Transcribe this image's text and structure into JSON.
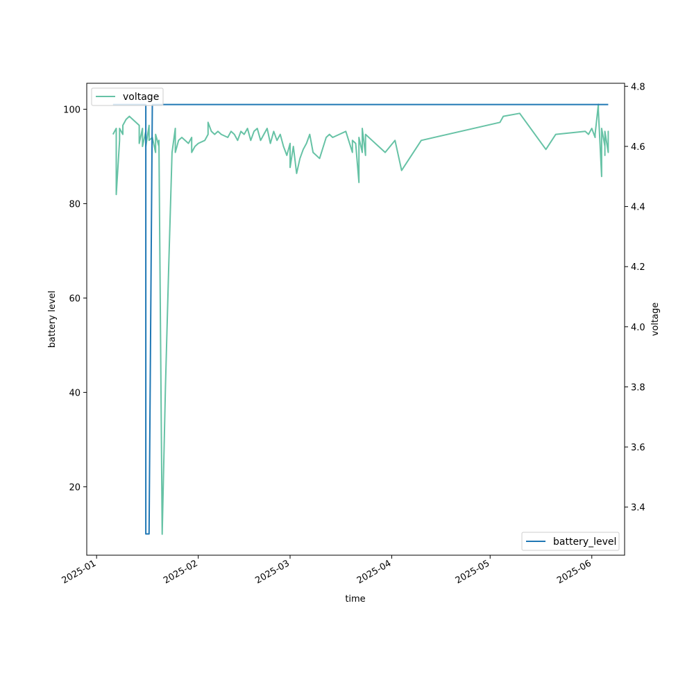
{
  "chart_data": {
    "type": "line",
    "xlabel": "time",
    "ylabel": "battery level",
    "ylabel_right": "voltage",
    "x_ticks": [
      "2025-01",
      "2025-02",
      "2025-03",
      "2025-04",
      "2025-05",
      "2025-06"
    ],
    "xlim": [
      "2024-12-29",
      "2025-06-11"
    ],
    "ylim": [
      5.5,
      105.5
    ],
    "ylim_right": [
      3.24,
      4.81
    ],
    "y_ticks": [
      20,
      40,
      60,
      80,
      100
    ],
    "y_ticks_right": [
      3.4,
      3.6,
      3.8,
      4.0,
      4.2,
      4.4,
      4.6,
      4.8
    ],
    "grid": false,
    "series": [
      {
        "name": "battery_level",
        "axis": "left",
        "color": "#1f77b4",
        "legend_position": "lower-right",
        "points": [
          [
            "2025-01-06",
            101
          ],
          [
            "2025-01-16",
            101
          ],
          [
            "2025-01-16",
            10
          ],
          [
            "2025-01-17",
            10
          ],
          [
            "2025-01-18",
            101
          ],
          [
            "2025-06-06",
            101
          ]
        ]
      },
      {
        "name": "voltage",
        "axis": "right",
        "color": "#66c2a5",
        "legend_position": "upper-left",
        "points": [
          [
            "2025-01-06",
            4.64
          ],
          [
            "2025-01-07",
            4.66
          ],
          [
            "2025-01-07",
            4.44
          ],
          [
            "2025-01-08",
            4.62
          ],
          [
            "2025-01-08",
            4.66
          ],
          [
            "2025-01-09",
            4.64
          ],
          [
            "2025-01-09",
            4.67
          ],
          [
            "2025-01-10",
            4.69
          ],
          [
            "2025-01-11",
            4.7
          ],
          [
            "2025-01-12",
            4.69
          ],
          [
            "2025-01-14",
            4.67
          ],
          [
            "2025-01-14",
            4.61
          ],
          [
            "2025-01-15",
            4.66
          ],
          [
            "2025-01-15",
            4.6
          ],
          [
            "2025-01-16",
            4.65
          ],
          [
            "2025-01-16",
            4.6
          ],
          [
            "2025-01-17",
            4.67
          ],
          [
            "2025-01-17",
            4.62
          ],
          [
            "2025-01-18",
            4.63
          ],
          [
            "2025-01-19",
            4.58
          ],
          [
            "2025-01-19",
            4.64
          ],
          [
            "2025-01-20",
            4.6
          ],
          [
            "2025-01-20",
            4.62
          ],
          [
            "2025-01-21",
            3.31
          ],
          [
            "2025-01-22",
            3.8
          ],
          [
            "2025-01-23",
            4.2
          ],
          [
            "2025-01-24",
            4.58
          ],
          [
            "2025-01-25",
            4.66
          ],
          [
            "2025-01-25",
            4.58
          ],
          [
            "2025-01-26",
            4.62
          ],
          [
            "2025-01-27",
            4.63
          ],
          [
            "2025-01-29",
            4.61
          ],
          [
            "2025-01-30",
            4.63
          ],
          [
            "2025-01-30",
            4.58
          ],
          [
            "2025-01-31",
            4.6
          ],
          [
            "2025-02-01",
            4.61
          ],
          [
            "2025-02-03",
            4.62
          ],
          [
            "2025-02-04",
            4.64
          ],
          [
            "2025-02-04",
            4.68
          ],
          [
            "2025-02-05",
            4.65
          ],
          [
            "2025-02-06",
            4.64
          ],
          [
            "2025-02-07",
            4.65
          ],
          [
            "2025-02-08",
            4.64
          ],
          [
            "2025-02-10",
            4.63
          ],
          [
            "2025-02-11",
            4.65
          ],
          [
            "2025-02-12",
            4.64
          ],
          [
            "2025-02-13",
            4.62
          ],
          [
            "2025-02-14",
            4.65
          ],
          [
            "2025-02-15",
            4.64
          ],
          [
            "2025-02-16",
            4.66
          ],
          [
            "2025-02-17",
            4.62
          ],
          [
            "2025-02-18",
            4.65
          ],
          [
            "2025-02-19",
            4.66
          ],
          [
            "2025-02-20",
            4.62
          ],
          [
            "2025-02-21",
            4.64
          ],
          [
            "2025-02-22",
            4.66
          ],
          [
            "2025-02-23",
            4.61
          ],
          [
            "2025-02-24",
            4.65
          ],
          [
            "2025-02-25",
            4.62
          ],
          [
            "2025-02-26",
            4.64
          ],
          [
            "2025-02-27",
            4.6
          ],
          [
            "2025-02-28",
            4.57
          ],
          [
            "2025-03-01",
            4.61
          ],
          [
            "2025-03-01",
            4.53
          ],
          [
            "2025-03-02",
            4.6
          ],
          [
            "2025-03-03",
            4.51
          ],
          [
            "2025-03-04",
            4.56
          ],
          [
            "2025-03-05",
            4.59
          ],
          [
            "2025-03-06",
            4.61
          ],
          [
            "2025-03-07",
            4.64
          ],
          [
            "2025-03-08",
            4.58
          ],
          [
            "2025-03-10",
            4.56
          ],
          [
            "2025-03-12",
            4.63
          ],
          [
            "2025-03-13",
            4.64
          ],
          [
            "2025-03-14",
            4.63
          ],
          [
            "2025-03-16",
            4.64
          ],
          [
            "2025-03-18",
            4.65
          ],
          [
            "2025-03-20",
            4.58
          ],
          [
            "2025-03-20",
            4.62
          ],
          [
            "2025-03-21",
            4.61
          ],
          [
            "2025-03-22",
            4.48
          ],
          [
            "2025-03-22",
            4.63
          ],
          [
            "2025-03-23",
            4.58
          ],
          [
            "2025-03-23",
            4.66
          ],
          [
            "2025-03-24",
            4.57
          ],
          [
            "2025-03-24",
            4.64
          ],
          [
            "2025-03-26",
            4.62
          ],
          [
            "2025-03-28",
            4.6
          ],
          [
            "2025-03-30",
            4.58
          ],
          [
            "2025-04-02",
            4.62
          ],
          [
            "2025-04-04",
            4.52
          ],
          [
            "2025-04-10",
            4.62
          ],
          [
            "2025-05-04",
            4.68
          ],
          [
            "2025-05-05",
            4.7
          ],
          [
            "2025-05-10",
            4.71
          ],
          [
            "2025-05-18",
            4.59
          ],
          [
            "2025-05-21",
            4.64
          ],
          [
            "2025-05-30",
            4.65
          ],
          [
            "2025-05-31",
            4.64
          ],
          [
            "2025-06-01",
            4.66
          ],
          [
            "2025-06-02",
            4.63
          ],
          [
            "2025-06-02",
            4.64
          ],
          [
            "2025-06-03",
            4.74
          ],
          [
            "2025-06-03",
            4.72
          ],
          [
            "2025-06-04",
            4.5
          ],
          [
            "2025-06-04",
            4.66
          ],
          [
            "2025-06-05",
            4.6
          ],
          [
            "2025-06-05",
            4.57
          ],
          [
            "2025-06-05",
            4.65
          ],
          [
            "2025-06-06",
            4.58
          ],
          [
            "2025-06-06",
            4.64
          ],
          [
            "2025-06-06",
            4.58
          ],
          [
            "2025-06-06",
            4.65
          ],
          [
            "2025-06-06",
            4.62
          ]
        ]
      }
    ]
  }
}
